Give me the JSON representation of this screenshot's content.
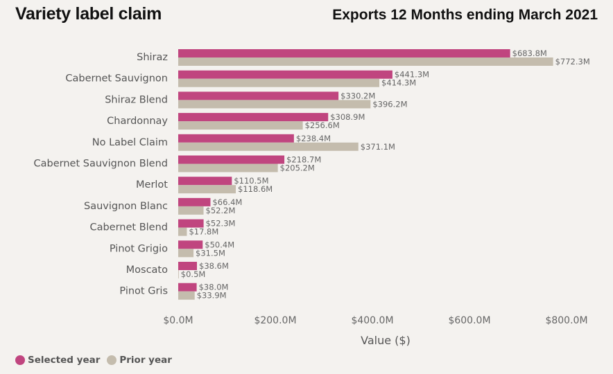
{
  "title": "Variety label claim",
  "subtitle": "Exports 12 Months ending March 2021",
  "colors": {
    "selected": "#c0457f",
    "prior": "#c4bcad"
  },
  "legend": {
    "selected_label": "Selected year",
    "prior_label": "Prior year"
  },
  "chart_data": {
    "type": "bar",
    "orientation": "horizontal",
    "categories": [
      "Shiraz",
      "Cabernet Sauvignon",
      "Shiraz Blend",
      "Chardonnay",
      "No Label Claim",
      "Cabernet Sauvignon Blend",
      "Merlot",
      "Sauvignon Blanc",
      "Cabernet Blend",
      "Pinot Grigio",
      "Moscato",
      "Pinot Gris"
    ],
    "series": [
      {
        "name": "Selected year",
        "values": [
          683.8,
          441.3,
          330.2,
          308.9,
          238.4,
          218.7,
          110.5,
          66.4,
          52.3,
          50.4,
          38.6,
          38.0
        ],
        "labels": [
          "$683.8M",
          "$441.3M",
          "$330.2M",
          "$308.9M",
          "$238.4M",
          "$218.7M",
          "$110.5M",
          "$66.4M",
          "$52.3M",
          "$50.4M",
          "$38.6M",
          "$38.0M"
        ]
      },
      {
        "name": "Prior year",
        "values": [
          772.3,
          414.3,
          396.2,
          256.6,
          371.1,
          205.2,
          118.6,
          52.2,
          17.8,
          31.5,
          0.5,
          33.9
        ],
        "labels": [
          "$772.3M",
          "$414.3M",
          "$396.2M",
          "$256.6M",
          "$371.1M",
          "$205.2M",
          "$118.6M",
          "$52.2M",
          "$17.8M",
          "$31.5M",
          "$0.5M",
          "$33.9M"
        ]
      }
    ],
    "xlabel": "Value ($)",
    "xlim": [
      0,
      850
    ],
    "xticks": [
      0,
      200,
      400,
      600,
      800
    ],
    "xtick_labels": [
      "$0.0M",
      "$200.0M",
      "$400.0M",
      "$600.0M",
      "$800.0M"
    ],
    "grid": false,
    "legend_position": "bottom-left"
  }
}
